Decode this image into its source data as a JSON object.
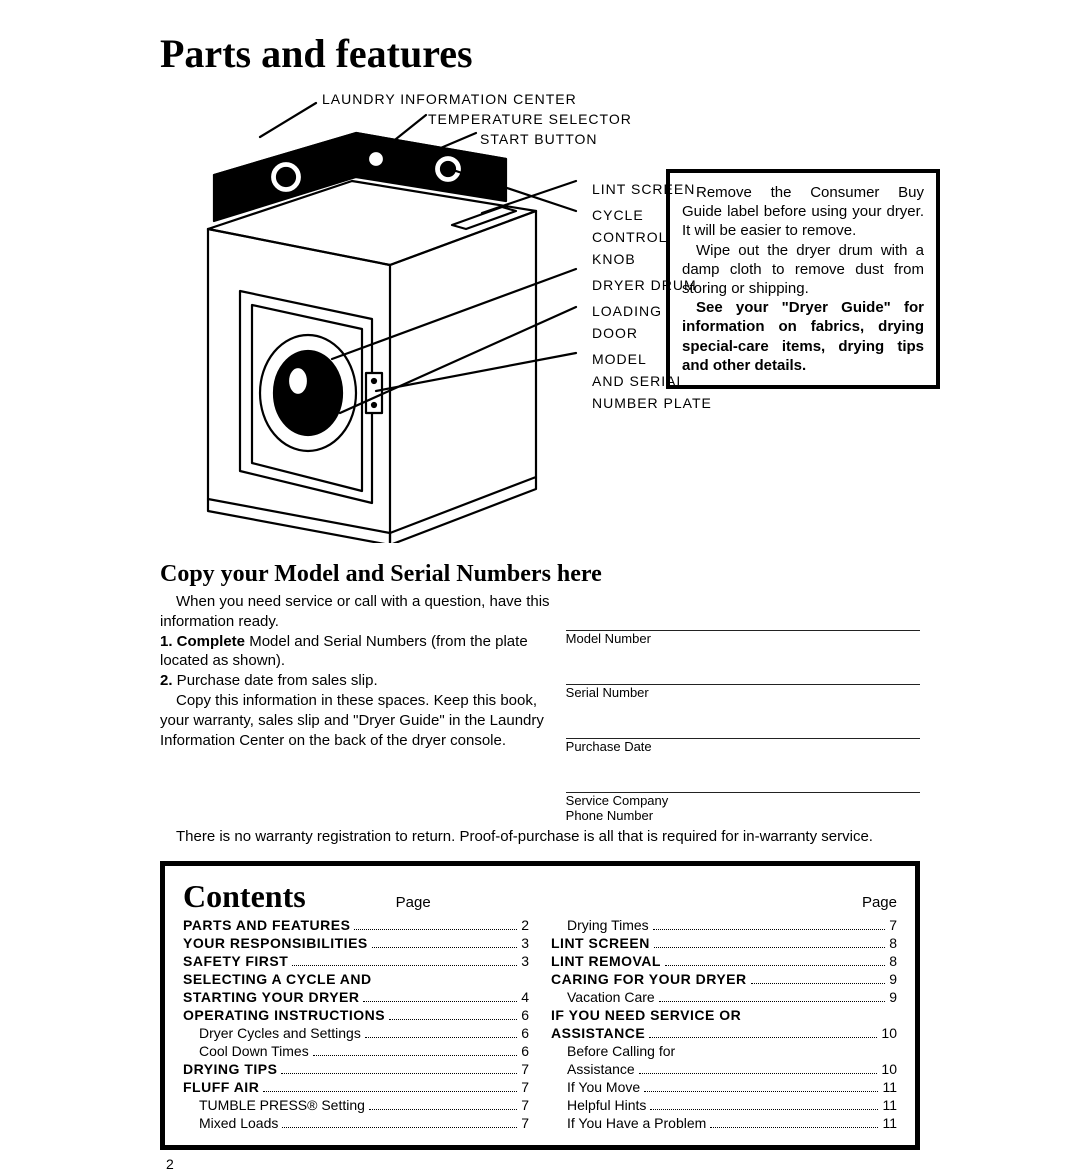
{
  "title": "Parts and features",
  "callouts": {
    "laundry_info": "LAUNDRY INFORMATION CENTER",
    "temp_selector": "TEMPERATURE SELECTOR",
    "start_button": "START BUTTON",
    "lint_screen": "LINT SCREEN",
    "cycle_control_1": "CYCLE",
    "cycle_control_2": "CONTROL",
    "cycle_control_3": "KNOB",
    "dryer_drum": "DRYER DRUM",
    "loading_1": "LOADING",
    "loading_2": "DOOR",
    "model_1": "MODEL",
    "model_2": "AND SERIAL",
    "model_3": "NUMBER PLATE"
  },
  "infobox": {
    "p1": "Remove the Consumer Buy Guide label before using your dryer. It will be easier to remove.",
    "p2": "Wipe out the dryer drum with a damp cloth to remove dust from storing or shipping.",
    "p3_lead": "See your \"Dryer Guide\" for information on fabrics, drying special-care items, drying tips and other details."
  },
  "copy": {
    "heading": "Copy your Model and Serial Numbers here",
    "intro1": "When you need service or call with a question, have this information ready.",
    "li1_b": "1. Complete",
    "li1": " Model and Serial Numbers (from the plate located as shown).",
    "li2_b": "2.",
    "li2": " Purchase date from sales slip.",
    "keep": "Copy this information in these spaces. Keep this book, your warranty, sales slip and \"Dryer Guide\" in the Laundry Information Center on the back of the dryer console.",
    "labels": {
      "model": "Model Number",
      "serial": "Serial Number",
      "purchase": "Purchase Date",
      "service1": "Service Company",
      "service2": "Phone Number"
    },
    "warranty": "There is no warranty registration to return. Proof-of-purchase is all that is required for in-warranty service."
  },
  "contents": {
    "heading": "Contents",
    "page_label": "Page",
    "left": [
      {
        "label": "PARTS AND FEATURES",
        "page": "2",
        "bold": true
      },
      {
        "label": "YOUR RESPONSIBILITIES",
        "page": "3",
        "bold": true
      },
      {
        "label": "SAFETY FIRST",
        "page": "3",
        "bold": true
      },
      {
        "label": "SELECTING A CYCLE AND",
        "page": "",
        "bold": true,
        "nodots": true
      },
      {
        "label": "STARTING YOUR DRYER",
        "page": "4",
        "bold": true
      },
      {
        "label": "OPERATING INSTRUCTIONS",
        "page": "6",
        "bold": true
      },
      {
        "label": "Dryer Cycles and Settings",
        "page": "6",
        "indent": true
      },
      {
        "label": "Cool Down Times",
        "page": "6",
        "indent": true
      },
      {
        "label": "DRYING TIPS",
        "page": "7",
        "bold": true
      },
      {
        "label": "FLUFF AIR",
        "page": "7",
        "bold": true
      },
      {
        "label": "TUMBLE PRESS® Setting",
        "page": "7",
        "indent": true
      },
      {
        "label": "Mixed Loads",
        "page": "7",
        "indent": true
      }
    ],
    "right": [
      {
        "label": "Drying Times",
        "page": "7",
        "indent": true
      },
      {
        "label": "LINT SCREEN",
        "page": "8",
        "bold": true
      },
      {
        "label": "LINT REMOVAL",
        "page": "8",
        "bold": true
      },
      {
        "label": "CARING FOR YOUR DRYER",
        "page": "9",
        "bold": true
      },
      {
        "label": "Vacation Care",
        "page": "9",
        "indent": true
      },
      {
        "label": "IF YOU NEED SERVICE OR",
        "page": "",
        "bold": true,
        "nodots": true
      },
      {
        "label": "ASSISTANCE",
        "page": "10",
        "bold": true
      },
      {
        "label": "Before Calling for",
        "page": "",
        "indent": true,
        "nodots": true
      },
      {
        "label": "Assistance",
        "page": "10",
        "indent": true
      },
      {
        "label": "If You Move",
        "page": "11",
        "indent": true
      },
      {
        "label": "Helpful Hints",
        "page": "11",
        "indent": true
      },
      {
        "label": "If You Have a Problem",
        "page": "11",
        "indent": true
      }
    ]
  },
  "page_number": "2",
  "colors": {
    "text": "#000000",
    "background": "#ffffff",
    "border": "#000000"
  }
}
